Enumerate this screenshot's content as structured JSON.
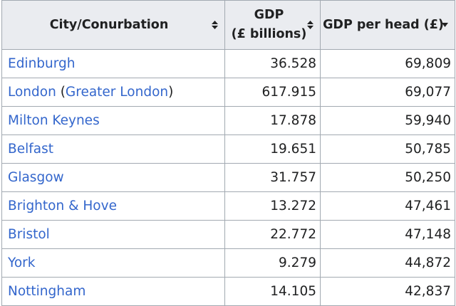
{
  "table": {
    "headers": {
      "city": "City/Conurbation",
      "gdp_line1": "GDP",
      "gdp_line2": "(£ billions)",
      "gdp_per_head": "GDP per head (£)"
    },
    "sort": {
      "column": "gdp_per_head",
      "direction": "descending"
    },
    "rows": [
      {
        "city": "Edinburgh",
        "gdp": "36.528",
        "per_head": "69,809"
      },
      {
        "city": "London",
        "paren_open": " (",
        "link2": "Greater London",
        "paren_close": ")",
        "gdp": "617.915",
        "per_head": "69,077"
      },
      {
        "city": "Milton Keynes",
        "gdp": "17.878",
        "per_head": "59,940"
      },
      {
        "city": "Belfast",
        "gdp": "19.651",
        "per_head": "50,785"
      },
      {
        "city": "Glasgow",
        "gdp": "31.757",
        "per_head": "50,250"
      },
      {
        "city": "Brighton & Hove",
        "gdp": "13.272",
        "per_head": "47,461"
      },
      {
        "city": "Bristol",
        "gdp": "22.772",
        "per_head": "47,148"
      },
      {
        "city": "York",
        "gdp": "9.279",
        "per_head": "44,872"
      },
      {
        "city": "Nottingham",
        "gdp": "14.105",
        "per_head": "42,837"
      }
    ]
  },
  "colors": {
    "link": "#3366cc",
    "header_bg": "#eaecf0",
    "border": "#a2a9b1",
    "text": "#202122"
  },
  "icons": {
    "sortable": "sort-both-icon",
    "sorted_desc": "sort-descending-icon"
  }
}
